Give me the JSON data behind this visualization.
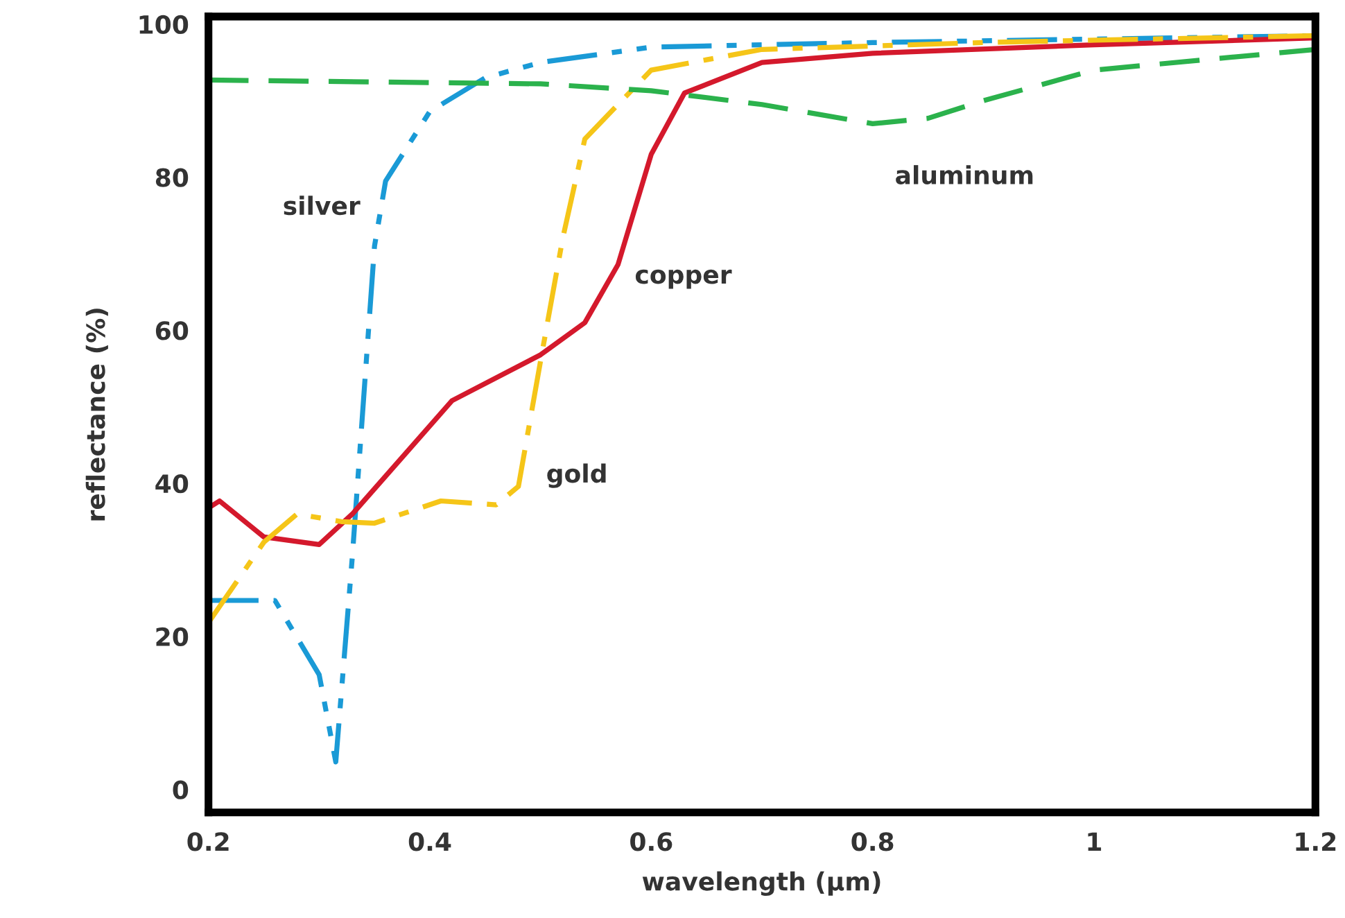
{
  "chart_data": {
    "type": "line",
    "xlabel": "wavelength (µm)",
    "ylabel": "reflectance (%)",
    "xlim": [
      0.2,
      1.2
    ],
    "ylim": [
      -3,
      101
    ],
    "xticks": [
      0.2,
      0.4,
      0.6,
      0.8,
      1,
      1.2
    ],
    "yticks": [
      0,
      20,
      40,
      60,
      80,
      100
    ],
    "grid": false,
    "legend": false,
    "marker": "none",
    "series": [
      {
        "name": "silver",
        "color": "#1a9ad6",
        "line_style": "dashdotdot",
        "x": [
          0.2,
          0.26,
          0.3,
          0.315,
          0.33,
          0.35,
          0.36,
          0.4,
          0.45,
          0.5,
          0.6,
          0.8,
          1.2
        ],
        "values": [
          24.7,
          24.7,
          15,
          3.6,
          30.5,
          71,
          79.5,
          88.6,
          93,
          95,
          97,
          97.6,
          98.5
        ]
      },
      {
        "name": "copper",
        "color": "#d4192c",
        "line_style": "solid",
        "x": [
          0.2,
          0.21,
          0.25,
          0.3,
          0.33,
          0.42,
          0.5,
          0.54,
          0.57,
          0.6,
          0.63,
          0.7,
          0.8,
          1.0,
          1.2
        ],
        "values": [
          36.8,
          37.7,
          33,
          32,
          36,
          50.8,
          56.8,
          61,
          68.6,
          83,
          91,
          95,
          96.2,
          97.3,
          98.2
        ]
      },
      {
        "name": "gold",
        "color": "#f5c518",
        "line_style": "dashdot",
        "x": [
          0.2,
          0.25,
          0.28,
          0.32,
          0.35,
          0.41,
          0.46,
          0.48,
          0.5,
          0.52,
          0.54,
          0.6,
          0.7,
          0.9,
          1.2
        ],
        "values": [
          21.8,
          32.3,
          36,
          35,
          34.8,
          37.7,
          37.2,
          39.6,
          56,
          72,
          85,
          94,
          96.7,
          97.6,
          98.5
        ]
      },
      {
        "name": "aluminum",
        "color": "#2bb24c",
        "line_style": "dashed",
        "x": [
          0.2,
          0.5,
          0.6,
          0.7,
          0.8,
          0.85,
          0.9,
          1.0,
          1.2
        ],
        "values": [
          92.7,
          92.2,
          91.3,
          89.5,
          87,
          87.7,
          90,
          94,
          96.7
        ]
      }
    ]
  }
}
